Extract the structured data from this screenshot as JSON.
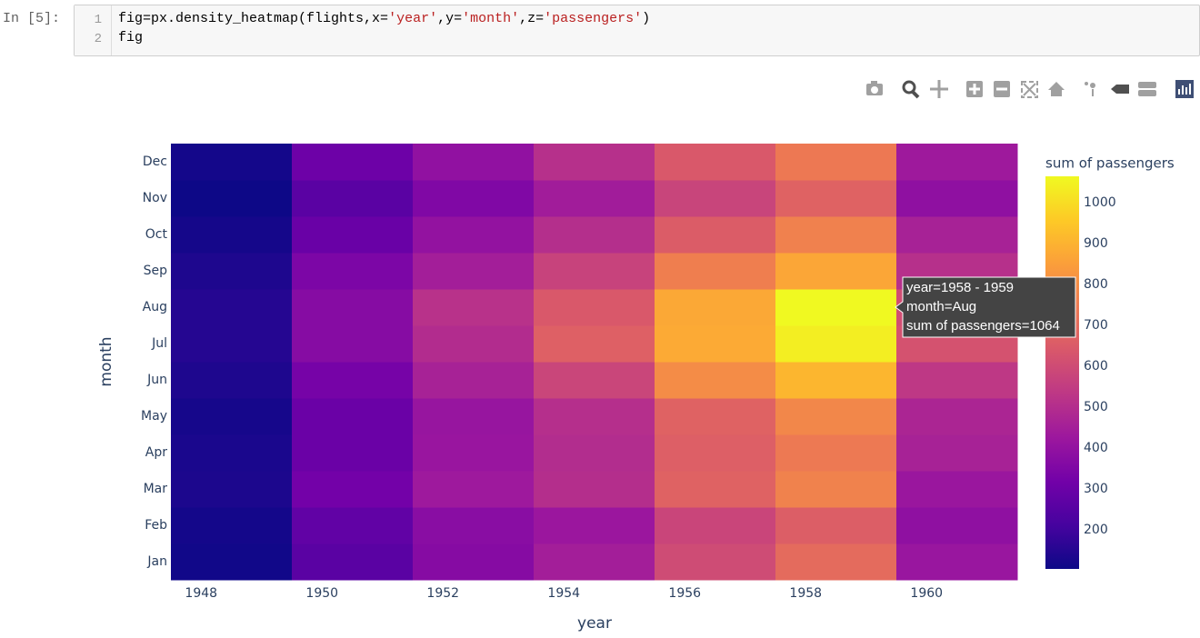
{
  "notebook": {
    "prompt": "In [5]:",
    "line_numbers": [
      1,
      2
    ],
    "code": [
      [
        "fig=px.density_heatmap(flights,x=",
        "'year'",
        ",y=",
        "'month'",
        ",z=",
        "'passengers'",
        ")"
      ],
      [
        "fig"
      ]
    ]
  },
  "chart_data": {
    "type": "heatmap",
    "x_label": "year",
    "y_label": "month",
    "x_bins": [
      1947.5,
      1949.5,
      1951.5,
      1953.5,
      1955.5,
      1957.5,
      1959.5,
      1961.5
    ],
    "xlim": [
      1947.5,
      1961.5
    ],
    "xticks": [
      1948,
      1950,
      1952,
      1954,
      1956,
      1958,
      1960
    ],
    "categories": [
      "Jan",
      "Feb",
      "Mar",
      "Apr",
      "May",
      "Jun",
      "Jul",
      "Aug",
      "Sep",
      "Oct",
      "Nov",
      "Dec"
    ],
    "z": [
      [
        112,
        260,
        367,
        446,
        599,
        700,
        417
      ],
      [
        118,
        276,
        376,
        421,
        578,
        660,
        391
      ],
      [
        132,
        319,
        429,
        502,
        673,
        768,
        419
      ],
      [
        129,
        298,
        416,
        496,
        661,
        744,
        461
      ],
      [
        121,
        297,
        412,
        504,
        673,
        783,
        472
      ],
      [
        135,
        327,
        461,
        579,
        796,
        907,
        535
      ],
      [
        148,
        369,
        494,
        666,
        878,
        1039,
        622
      ],
      [
        148,
        369,
        514,
        640,
        872,
        1064,
        606
      ],
      [
        136,
        342,
        446,
        571,
        759,
        867,
        508
      ],
      [
        119,
        295,
        402,
        503,
        653,
        766,
        461
      ],
      [
        104,
        260,
        352,
        440,
        576,
        672,
        390
      ],
      [
        118,
        306,
        395,
        507,
        642,
        742,
        432
      ]
    ],
    "colorscale": [
      "#0d0887",
      "#46039f",
      "#7201a8",
      "#9c179e",
      "#bd3786",
      "#d8576b",
      "#ed7953",
      "#fb9f3a",
      "#fdca26",
      "#f0f921"
    ],
    "colorbar_title": "sum of passengers",
    "colorbar_ticks": [
      200,
      300,
      400,
      500,
      600,
      700,
      800,
      900,
      1000
    ],
    "tooltip": [
      "year=1958 - 1959",
      "month=Aug",
      "sum of passengers=1064"
    ]
  }
}
